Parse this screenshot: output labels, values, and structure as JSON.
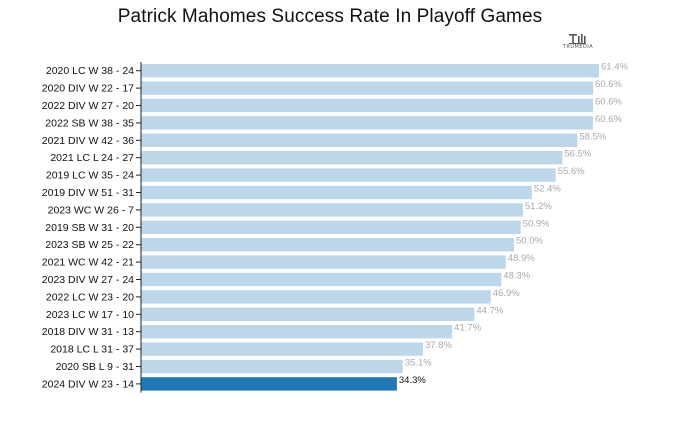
{
  "title": "Patrick Mahomes Success Rate In Playoff Games",
  "logo": {
    "icon": "trumedia-logo-icon",
    "text": "TRUMEDIA"
  },
  "colors": {
    "bar": "#bcd6ea",
    "highlight": "#1f77b4",
    "axis": "#222222",
    "value_text": "#a9a9a9"
  },
  "chart_data": {
    "type": "bar",
    "orientation": "horizontal",
    "title": "Patrick Mahomes Success Rate In Playoff Games",
    "xlabel": "",
    "ylabel": "",
    "xlim": [
      0,
      61.4
    ],
    "grid": false,
    "categories": [
      "2020 LC W 38 - 24",
      "2020 DIV W 22 - 17",
      "2022 DIV W 27 - 20",
      "2022 SB W 38 - 35",
      "2021 DIV W 42 - 36",
      "2021 LC L 24 - 27",
      "2019 LC W 35 - 24",
      "2019 DIV W 51 - 31",
      "2023 WC W 26 - 7",
      "2019 SB W 31 - 20",
      "2023 SB W 25 - 22",
      "2021 WC W 42 - 21",
      "2023 DIV W 27 - 24",
      "2022 LC W 23 - 20",
      "2023 LC W 17 - 10",
      "2018 DIV W 31 - 13",
      "2018 LC L 31 - 37",
      "2020 SB L 9 - 31",
      "2024 DIV W 23 - 14"
    ],
    "values": [
      61.4,
      60.6,
      60.6,
      60.6,
      58.5,
      56.5,
      55.6,
      52.4,
      51.2,
      50.9,
      50.0,
      48.9,
      48.3,
      46.9,
      44.7,
      41.7,
      37.8,
      35.1,
      34.3
    ],
    "labels": [
      "61.4%",
      "60.6%",
      "60.6%",
      "60.6%",
      "58.5%",
      "56.5%",
      "55.6%",
      "52.4%",
      "51.2%",
      "50.9%",
      "50.0%",
      "48.9%",
      "48.3%",
      "46.9%",
      "44.7%",
      "41.7%",
      "37.8%",
      "35.1%",
      "34.3%"
    ],
    "highlight_index": 18
  }
}
